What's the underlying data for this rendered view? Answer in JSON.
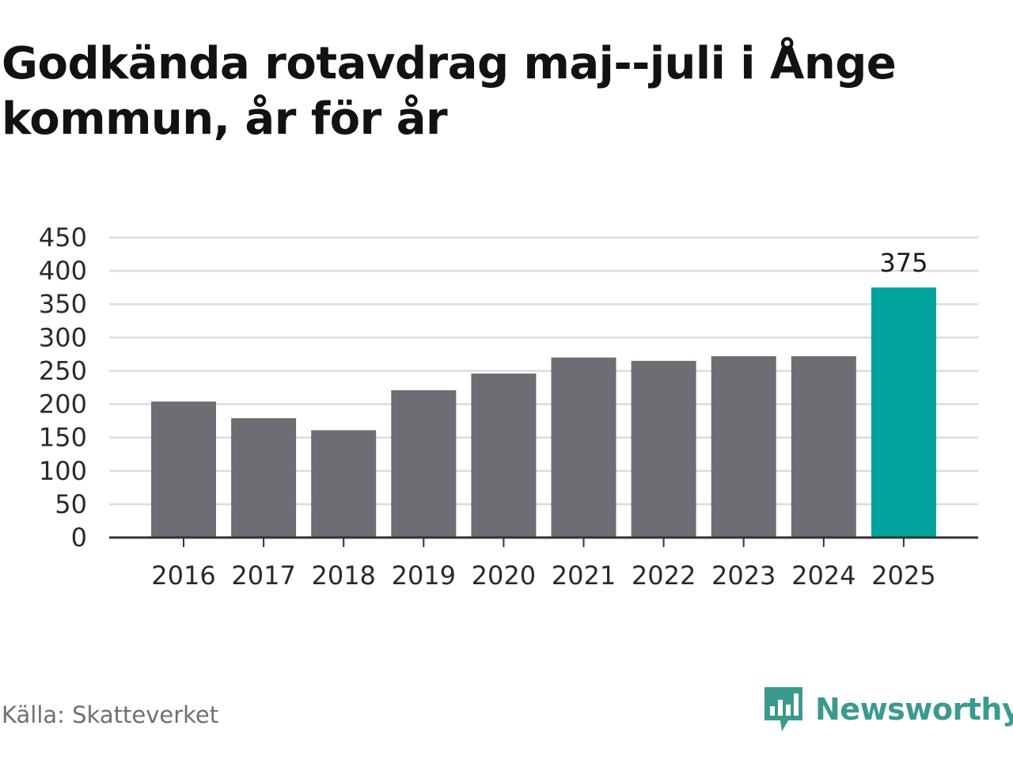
{
  "chart_data": {
    "type": "bar",
    "title": "Godkända rotavdrag maj--juli i Ånge kommun, år för år",
    "categories": [
      "2016",
      "2017",
      "2018",
      "2019",
      "2020",
      "2021",
      "2022",
      "2023",
      "2024",
      "2025"
    ],
    "values": [
      204,
      179,
      161,
      221,
      246,
      270,
      265,
      272,
      272,
      375
    ],
    "ylim": [
      0,
      450
    ],
    "yticks": [
      "0",
      "50",
      "100",
      "150",
      "200",
      "250",
      "300",
      "350",
      "400",
      "450"
    ],
    "grid": true,
    "bar_color": "#6e6d73",
    "highlight_color": "#00a39b",
    "highlight_index": 9,
    "data_labels": [
      {
        "index": 9,
        "text": "375"
      }
    ]
  },
  "source": "Källa: Skatteverket",
  "brand": {
    "name": "Newsworthy",
    "color": "#3b9a8e"
  }
}
